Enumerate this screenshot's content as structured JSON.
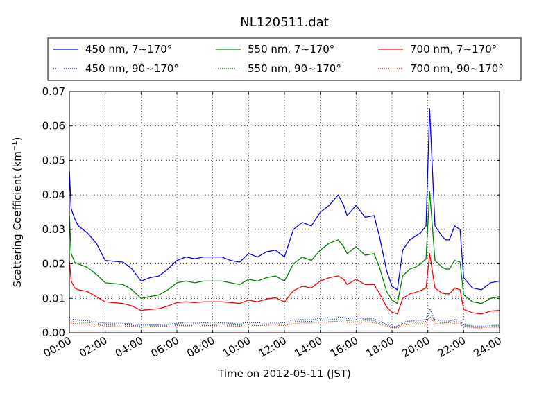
{
  "chart_data": {
    "type": "line",
    "title": "NL120511.dat",
    "xlabel": "Time on 2012-05-11 (JST)",
    "ylabel": "Scattering Coefficient (km",
    "ylabel_sup": "−1",
    "ylabel_end": ")",
    "xlim": [
      0,
      24
    ],
    "ylim": [
      0,
      0.07
    ],
    "grid": true,
    "legend_position": "top",
    "x_ticks": [
      0,
      2,
      4,
      6,
      8,
      10,
      12,
      14,
      16,
      18,
      20,
      22,
      24
    ],
    "x_tick_labels": [
      "00:00",
      "02:00",
      "04:00",
      "06:00",
      "08:00",
      "10:00",
      "12:00",
      "14:00",
      "16:00",
      "18:00",
      "20:00",
      "22:00",
      "24:00"
    ],
    "y_ticks": [
      0,
      0.01,
      0.02,
      0.03,
      0.04,
      0.05,
      0.06,
      0.07
    ],
    "y_tick_labels": [
      "0.00",
      "0.01",
      "0.02",
      "0.03",
      "0.04",
      "0.05",
      "0.06",
      "0.07"
    ],
    "x": [
      0,
      0.1,
      0.3,
      0.5,
      1,
      1.5,
      2,
      3,
      3.5,
      4,
      4.5,
      5,
      5.5,
      6,
      6.5,
      7,
      7.5,
      8,
      8.5,
      9,
      9.5,
      10,
      10.5,
      11,
      11.5,
      12,
      12.5,
      13,
      13.5,
      14,
      14.5,
      15,
      15.3,
      15.5,
      16,
      16.5,
      17,
      17.3,
      17.7,
      18,
      18.3,
      18.6,
      19,
      19.3,
      19.6,
      19.9,
      20.1,
      20.4,
      20.8,
      21,
      21.2,
      21.5,
      21.8,
      22,
      22.5,
      23,
      23.5,
      24
    ],
    "series": [
      {
        "name": "450 nm, 7∼170°",
        "color": "#0000ff",
        "style": "solid",
        "values": [
          0.047,
          0.036,
          0.033,
          0.031,
          0.029,
          0.026,
          0.021,
          0.0205,
          0.0185,
          0.015,
          0.016,
          0.0165,
          0.0185,
          0.021,
          0.022,
          0.0215,
          0.022,
          0.022,
          0.022,
          0.021,
          0.0205,
          0.023,
          0.022,
          0.0235,
          0.024,
          0.022,
          0.03,
          0.032,
          0.031,
          0.035,
          0.037,
          0.04,
          0.037,
          0.034,
          0.037,
          0.0335,
          0.034,
          0.028,
          0.018,
          0.0135,
          0.0125,
          0.024,
          0.027,
          0.028,
          0.029,
          0.031,
          0.065,
          0.031,
          0.028,
          0.027,
          0.027,
          0.031,
          0.03,
          0.016,
          0.013,
          0.0125,
          0.0145,
          0.015
        ]
      },
      {
        "name": "550 nm, 7∼170°",
        "color": "#008000",
        "style": "solid",
        "values": [
          0.034,
          0.023,
          0.0205,
          0.02,
          0.019,
          0.017,
          0.0145,
          0.014,
          0.0125,
          0.01,
          0.0105,
          0.011,
          0.0125,
          0.0145,
          0.015,
          0.0145,
          0.015,
          0.015,
          0.015,
          0.0145,
          0.014,
          0.0155,
          0.015,
          0.016,
          0.0165,
          0.015,
          0.02,
          0.022,
          0.021,
          0.024,
          0.026,
          0.027,
          0.025,
          0.023,
          0.025,
          0.0225,
          0.023,
          0.019,
          0.012,
          0.0095,
          0.0085,
          0.0165,
          0.0185,
          0.019,
          0.02,
          0.0215,
          0.041,
          0.021,
          0.019,
          0.0185,
          0.0185,
          0.021,
          0.0205,
          0.011,
          0.009,
          0.0085,
          0.01,
          0.0105
        ]
      },
      {
        "name": "700 nm, 7∼170°",
        "color": "#ff0000",
        "style": "solid",
        "values": [
          0.021,
          0.015,
          0.013,
          0.0125,
          0.012,
          0.0105,
          0.009,
          0.0085,
          0.0078,
          0.0065,
          0.0068,
          0.007,
          0.0078,
          0.0088,
          0.009,
          0.0088,
          0.009,
          0.009,
          0.009,
          0.0088,
          0.0085,
          0.0095,
          0.009,
          0.0098,
          0.0102,
          0.009,
          0.0122,
          0.0135,
          0.013,
          0.015,
          0.016,
          0.0165,
          0.0155,
          0.014,
          0.0155,
          0.014,
          0.014,
          0.0115,
          0.0075,
          0.006,
          0.0055,
          0.01,
          0.0113,
          0.0117,
          0.0123,
          0.013,
          0.023,
          0.013,
          0.0115,
          0.0113,
          0.0113,
          0.013,
          0.0125,
          0.0068,
          0.0058,
          0.0055,
          0.0063,
          0.0065
        ]
      },
      {
        "name": "450 nm, 90∼170°",
        "color": "#0000ff",
        "style": "dotted",
        "values": [
          0.0045,
          0.004,
          0.0038,
          0.0037,
          0.0035,
          0.0032,
          0.0028,
          0.0028,
          0.0026,
          0.0022,
          0.0023,
          0.0023,
          0.0025,
          0.0028,
          0.0029,
          0.0028,
          0.0029,
          0.0029,
          0.0029,
          0.0028,
          0.0027,
          0.003,
          0.0029,
          0.003,
          0.0031,
          0.0029,
          0.0037,
          0.0039,
          0.0038,
          0.0042,
          0.0044,
          0.0046,
          0.0044,
          0.0041,
          0.0044,
          0.004,
          0.0041,
          0.0034,
          0.0024,
          0.002,
          0.0019,
          0.0031,
          0.0034,
          0.0035,
          0.0036,
          0.0038,
          0.007,
          0.0038,
          0.0035,
          0.0034,
          0.0034,
          0.0038,
          0.0037,
          0.0023,
          0.002,
          0.0019,
          0.0021,
          0.0022
        ]
      },
      {
        "name": "550 nm, 90∼170°",
        "color": "#008000",
        "style": "dotted",
        "values": [
          0.0038,
          0.0034,
          0.0032,
          0.0031,
          0.003,
          0.0027,
          0.0024,
          0.0024,
          0.0022,
          0.0019,
          0.002,
          0.002,
          0.0022,
          0.0024,
          0.0025,
          0.0024,
          0.0025,
          0.0025,
          0.0025,
          0.0024,
          0.0023,
          0.0026,
          0.0025,
          0.0026,
          0.0027,
          0.0025,
          0.0032,
          0.0034,
          0.0033,
          0.0036,
          0.0038,
          0.004,
          0.0038,
          0.0035,
          0.0038,
          0.0035,
          0.0035,
          0.0029,
          0.0021,
          0.0017,
          0.0016,
          0.0027,
          0.0029,
          0.003,
          0.0031,
          0.0033,
          0.0058,
          0.0033,
          0.003,
          0.0029,
          0.0029,
          0.0033,
          0.0032,
          0.002,
          0.0017,
          0.0016,
          0.0018,
          0.0019
        ]
      },
      {
        "name": "700 nm, 90∼170°",
        "color": "#ff0000",
        "style": "dotted",
        "values": [
          0.0032,
          0.0028,
          0.0027,
          0.0026,
          0.0025,
          0.0023,
          0.002,
          0.002,
          0.0019,
          0.0016,
          0.0017,
          0.0017,
          0.0019,
          0.0021,
          0.0021,
          0.0021,
          0.0021,
          0.0021,
          0.0021,
          0.002,
          0.002,
          0.0022,
          0.0021,
          0.0022,
          0.0023,
          0.0021,
          0.0027,
          0.0029,
          0.0028,
          0.0031,
          0.0032,
          0.0034,
          0.0032,
          0.003,
          0.0032,
          0.003,
          0.003,
          0.0025,
          0.0018,
          0.0015,
          0.0014,
          0.0023,
          0.0025,
          0.0026,
          0.0026,
          0.0028,
          0.0048,
          0.0028,
          0.0026,
          0.0025,
          0.0025,
          0.0028,
          0.0027,
          0.0017,
          0.0015,
          0.0014,
          0.0016,
          0.0016
        ]
      }
    ]
  }
}
